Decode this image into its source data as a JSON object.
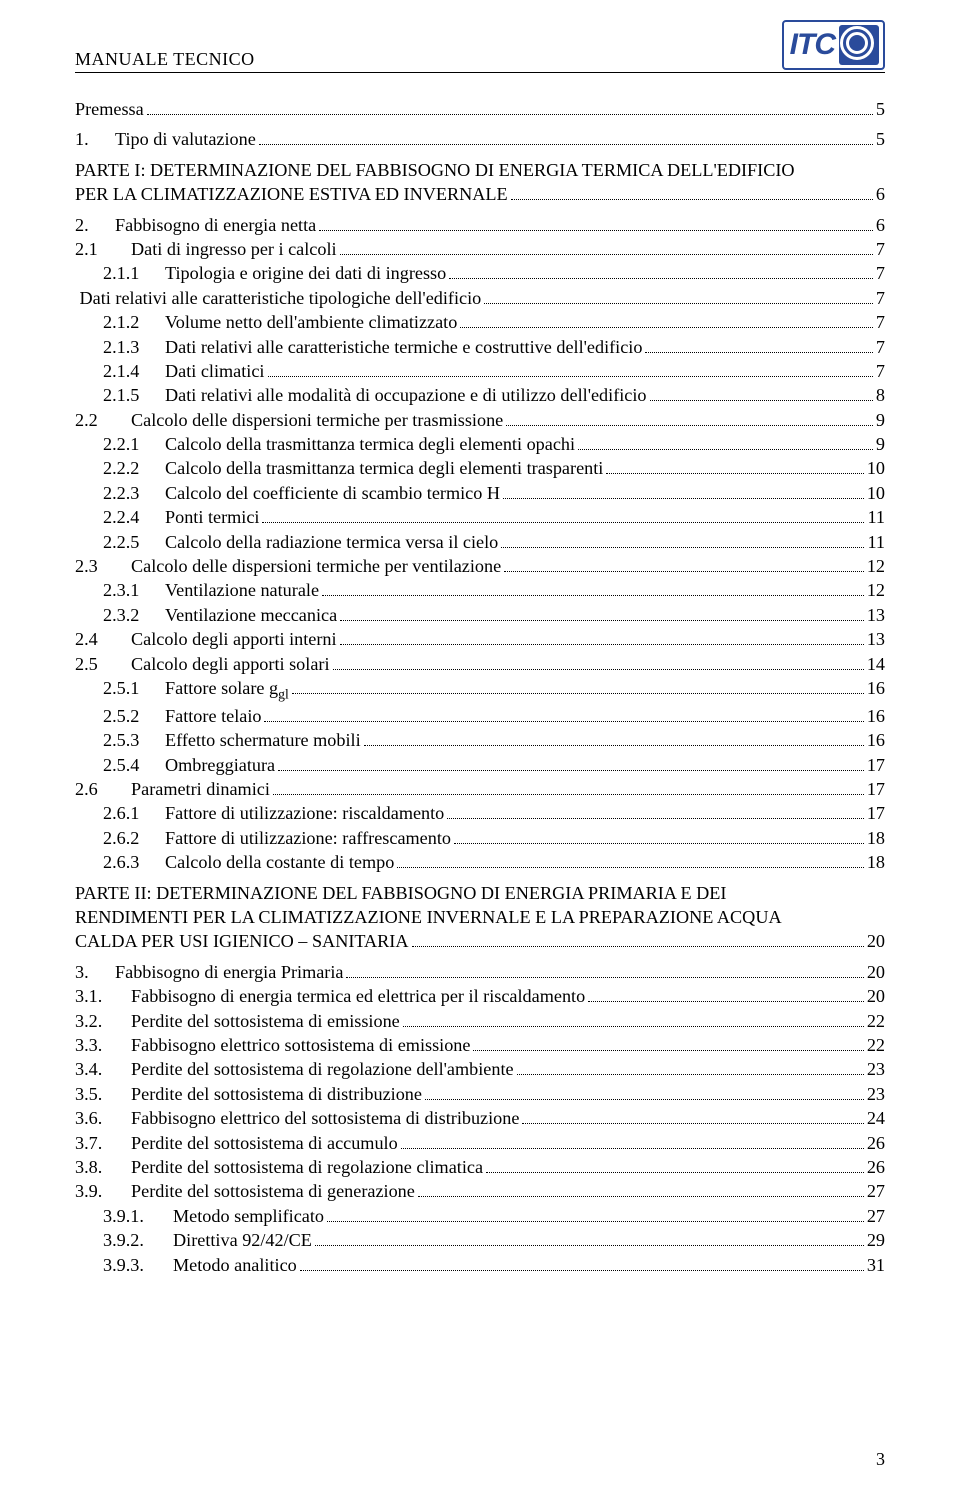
{
  "header": {
    "title": "MANUALE TECNICO",
    "logo_text": "ITC"
  },
  "page_number": "3",
  "toc": [
    {
      "type": "row",
      "level": 0,
      "num": "",
      "text": "Premessa",
      "page": "5",
      "name": "toc-premessa"
    },
    {
      "type": "gap"
    },
    {
      "type": "row",
      "level": 1,
      "num": "1.",
      "text": "Tipo di valutazione",
      "page": "5",
      "name": "toc-1"
    },
    {
      "type": "gap"
    },
    {
      "type": "part",
      "lines": [
        "PARTE I: DETERMINAZIONE DEL FABBISOGNO DI ENERGIA TERMICA DELL'EDIFICIO",
        "PER LA CLIMATIZZAZIONE ESTIVA ED INVERNALE"
      ],
      "page": "6",
      "name": "toc-part-1"
    },
    {
      "type": "gap"
    },
    {
      "type": "row",
      "level": 1,
      "num": "2.",
      "text": "Fabbisogno di energia netta",
      "page": "6",
      "name": "toc-2"
    },
    {
      "type": "row",
      "level": 2,
      "num": "2.1",
      "text": "Dati di ingresso per i calcoli",
      "page": "7",
      "name": "toc-2-1"
    },
    {
      "type": "row",
      "level": 3,
      "num": "2.1.1",
      "text": "Tipologia e origine dei dati di ingresso",
      "page": "7",
      "name": "toc-2-1-1"
    },
    {
      "type": "row",
      "level": 2,
      "num": "",
      "text": "Dati relativi alle caratteristiche tipologiche dell'edificio",
      "page": "7",
      "name": "toc-dati-tipologiche"
    },
    {
      "type": "row",
      "level": 3,
      "num": "2.1.2",
      "text": "Volume netto dell'ambiente climatizzato",
      "page": "7",
      "name": "toc-2-1-2"
    },
    {
      "type": "row",
      "level": 3,
      "num": "2.1.3",
      "text": "Dati relativi alle caratteristiche termiche e costruttive dell'edificio",
      "page": "7",
      "name": "toc-2-1-3"
    },
    {
      "type": "row",
      "level": 3,
      "num": "2.1.4",
      "text": "Dati climatici",
      "page": "7",
      "name": "toc-2-1-4"
    },
    {
      "type": "row",
      "level": 3,
      "num": "2.1.5",
      "text": "Dati relativi alle modalità di occupazione e di utilizzo dell'edificio",
      "page": "8",
      "name": "toc-2-1-5"
    },
    {
      "type": "row",
      "level": 2,
      "num": "2.2",
      "text": "Calcolo delle dispersioni termiche per trasmissione",
      "page": "9",
      "name": "toc-2-2"
    },
    {
      "type": "row",
      "level": 3,
      "num": "2.2.1",
      "text": "Calcolo della trasmittanza termica degli elementi opachi",
      "page": "9",
      "name": "toc-2-2-1"
    },
    {
      "type": "row",
      "level": 3,
      "num": "2.2.2",
      "text": "Calcolo della trasmittanza termica degli elementi trasparenti",
      "page": "10",
      "name": "toc-2-2-2"
    },
    {
      "type": "row",
      "level": 3,
      "num": "2.2.3",
      "text": "Calcolo del coefficiente di scambio termico H",
      "page": "10",
      "name": "toc-2-2-3"
    },
    {
      "type": "row",
      "level": 3,
      "num": "2.2.4",
      "text": "Ponti termici",
      "page": "11",
      "name": "toc-2-2-4"
    },
    {
      "type": "row",
      "level": 3,
      "num": "2.2.5",
      "text": "Calcolo della radiazione termica versa il cielo",
      "page": "11",
      "name": "toc-2-2-5"
    },
    {
      "type": "row",
      "level": 2,
      "num": "2.3",
      "text": "Calcolo delle dispersioni termiche per ventilazione",
      "page": "12",
      "name": "toc-2-3"
    },
    {
      "type": "row",
      "level": 3,
      "num": "2.3.1",
      "text": "Ventilazione naturale",
      "page": "12",
      "name": "toc-2-3-1"
    },
    {
      "type": "row",
      "level": 3,
      "num": "2.3.2",
      "text": "Ventilazione meccanica",
      "page": "13",
      "name": "toc-2-3-2"
    },
    {
      "type": "row",
      "level": 2,
      "num": "2.4",
      "text": "Calcolo degli apporti interni",
      "page": "13",
      "name": "toc-2-4"
    },
    {
      "type": "row",
      "level": 2,
      "num": "2.5",
      "text": "Calcolo degli apporti solari",
      "page": "14",
      "name": "toc-2-5"
    },
    {
      "type": "row",
      "level": 3,
      "num": "2.5.1",
      "text": "Fattore solare g<sub>gl</sub>",
      "page": "16",
      "name": "toc-2-5-1",
      "html": true
    },
    {
      "type": "row",
      "level": 3,
      "num": "2.5.2",
      "text": "Fattore telaio",
      "page": "16",
      "name": "toc-2-5-2"
    },
    {
      "type": "row",
      "level": 3,
      "num": "2.5.3",
      "text": "Effetto schermature mobili",
      "page": "16",
      "name": "toc-2-5-3"
    },
    {
      "type": "row",
      "level": 3,
      "num": "2.5.4",
      "text": "Ombreggiatura",
      "page": "17",
      "name": "toc-2-5-4"
    },
    {
      "type": "row",
      "level": 2,
      "num": "2.6",
      "text": "Parametri dinamici",
      "page": "17",
      "name": "toc-2-6"
    },
    {
      "type": "row",
      "level": 3,
      "num": "2.6.1",
      "text": "Fattore di utilizzazione: riscaldamento",
      "page": "17",
      "name": "toc-2-6-1"
    },
    {
      "type": "row",
      "level": 3,
      "num": "2.6.2",
      "text": "Fattore di utilizzazione: raffrescamento",
      "page": "18",
      "name": "toc-2-6-2"
    },
    {
      "type": "row",
      "level": 3,
      "num": "2.6.3",
      "text": "Calcolo della costante di tempo",
      "page": "18",
      "name": "toc-2-6-3"
    },
    {
      "type": "gap"
    },
    {
      "type": "part",
      "lines": [
        "PARTE II: DETERMINAZIONE DEL FABBISOGNO DI ENERGIA PRIMARIA E DEI",
        "RENDIMENTI PER LA CLIMATIZZAZIONE INVERNALE E LA PREPARAZIONE ACQUA",
        "CALDA PER USI IGIENICO – SANITARIA"
      ],
      "page": "20",
      "name": "toc-part-2"
    },
    {
      "type": "gap"
    },
    {
      "type": "row",
      "level": 1,
      "num": "3.",
      "text": "Fabbisogno di energia Primaria",
      "page": "20",
      "name": "toc-3"
    },
    {
      "type": "row",
      "level": 2,
      "num": "3.1.",
      "text": "Fabbisogno di energia termica ed elettrica per il riscaldamento",
      "page": "20",
      "name": "toc-3-1"
    },
    {
      "type": "row",
      "level": 2,
      "num": "3.2.",
      "text": "Perdite del sottosistema di emissione",
      "page": "22",
      "name": "toc-3-2"
    },
    {
      "type": "row",
      "level": 2,
      "num": "3.3.",
      "text": "Fabbisogno elettrico sottosistema di emissione",
      "page": "22",
      "name": "toc-3-3"
    },
    {
      "type": "row",
      "level": 2,
      "num": "3.4.",
      "text": "Perdite del sottosistema di regolazione dell'ambiente",
      "page": "23",
      "name": "toc-3-4"
    },
    {
      "type": "row",
      "level": 2,
      "num": "3.5.",
      "text": "Perdite del sottosistema di distribuzione",
      "page": "23",
      "name": "toc-3-5"
    },
    {
      "type": "row",
      "level": 2,
      "num": "3.6.",
      "text": "Fabbisogno elettrico del sottosistema di distribuzione",
      "page": "24",
      "name": "toc-3-6"
    },
    {
      "type": "row",
      "level": 2,
      "num": "3.7.",
      "text": "Perdite del sottosistema di accumulo",
      "page": "26",
      "name": "toc-3-7"
    },
    {
      "type": "row",
      "level": 2,
      "num": "3.8.",
      "text": "Perdite del sottosistema di regolazione climatica",
      "page": "26",
      "name": "toc-3-8"
    },
    {
      "type": "row",
      "level": 2,
      "num": "3.9.",
      "text": "Perdite del sottosistema di generazione",
      "page": "27",
      "name": "toc-3-9"
    },
    {
      "type": "row",
      "level": 4,
      "num": "3.9.1.",
      "text": "Metodo semplificato",
      "page": "27",
      "name": "toc-3-9-1"
    },
    {
      "type": "row",
      "level": 4,
      "num": "3.9.2.",
      "text": "Direttiva 92/42/CE",
      "page": "29",
      "name": "toc-3-9-2"
    },
    {
      "type": "row",
      "level": 4,
      "num": "3.9.3.",
      "text": "Metodo analitico",
      "page": "31",
      "name": "toc-3-9-3"
    }
  ]
}
